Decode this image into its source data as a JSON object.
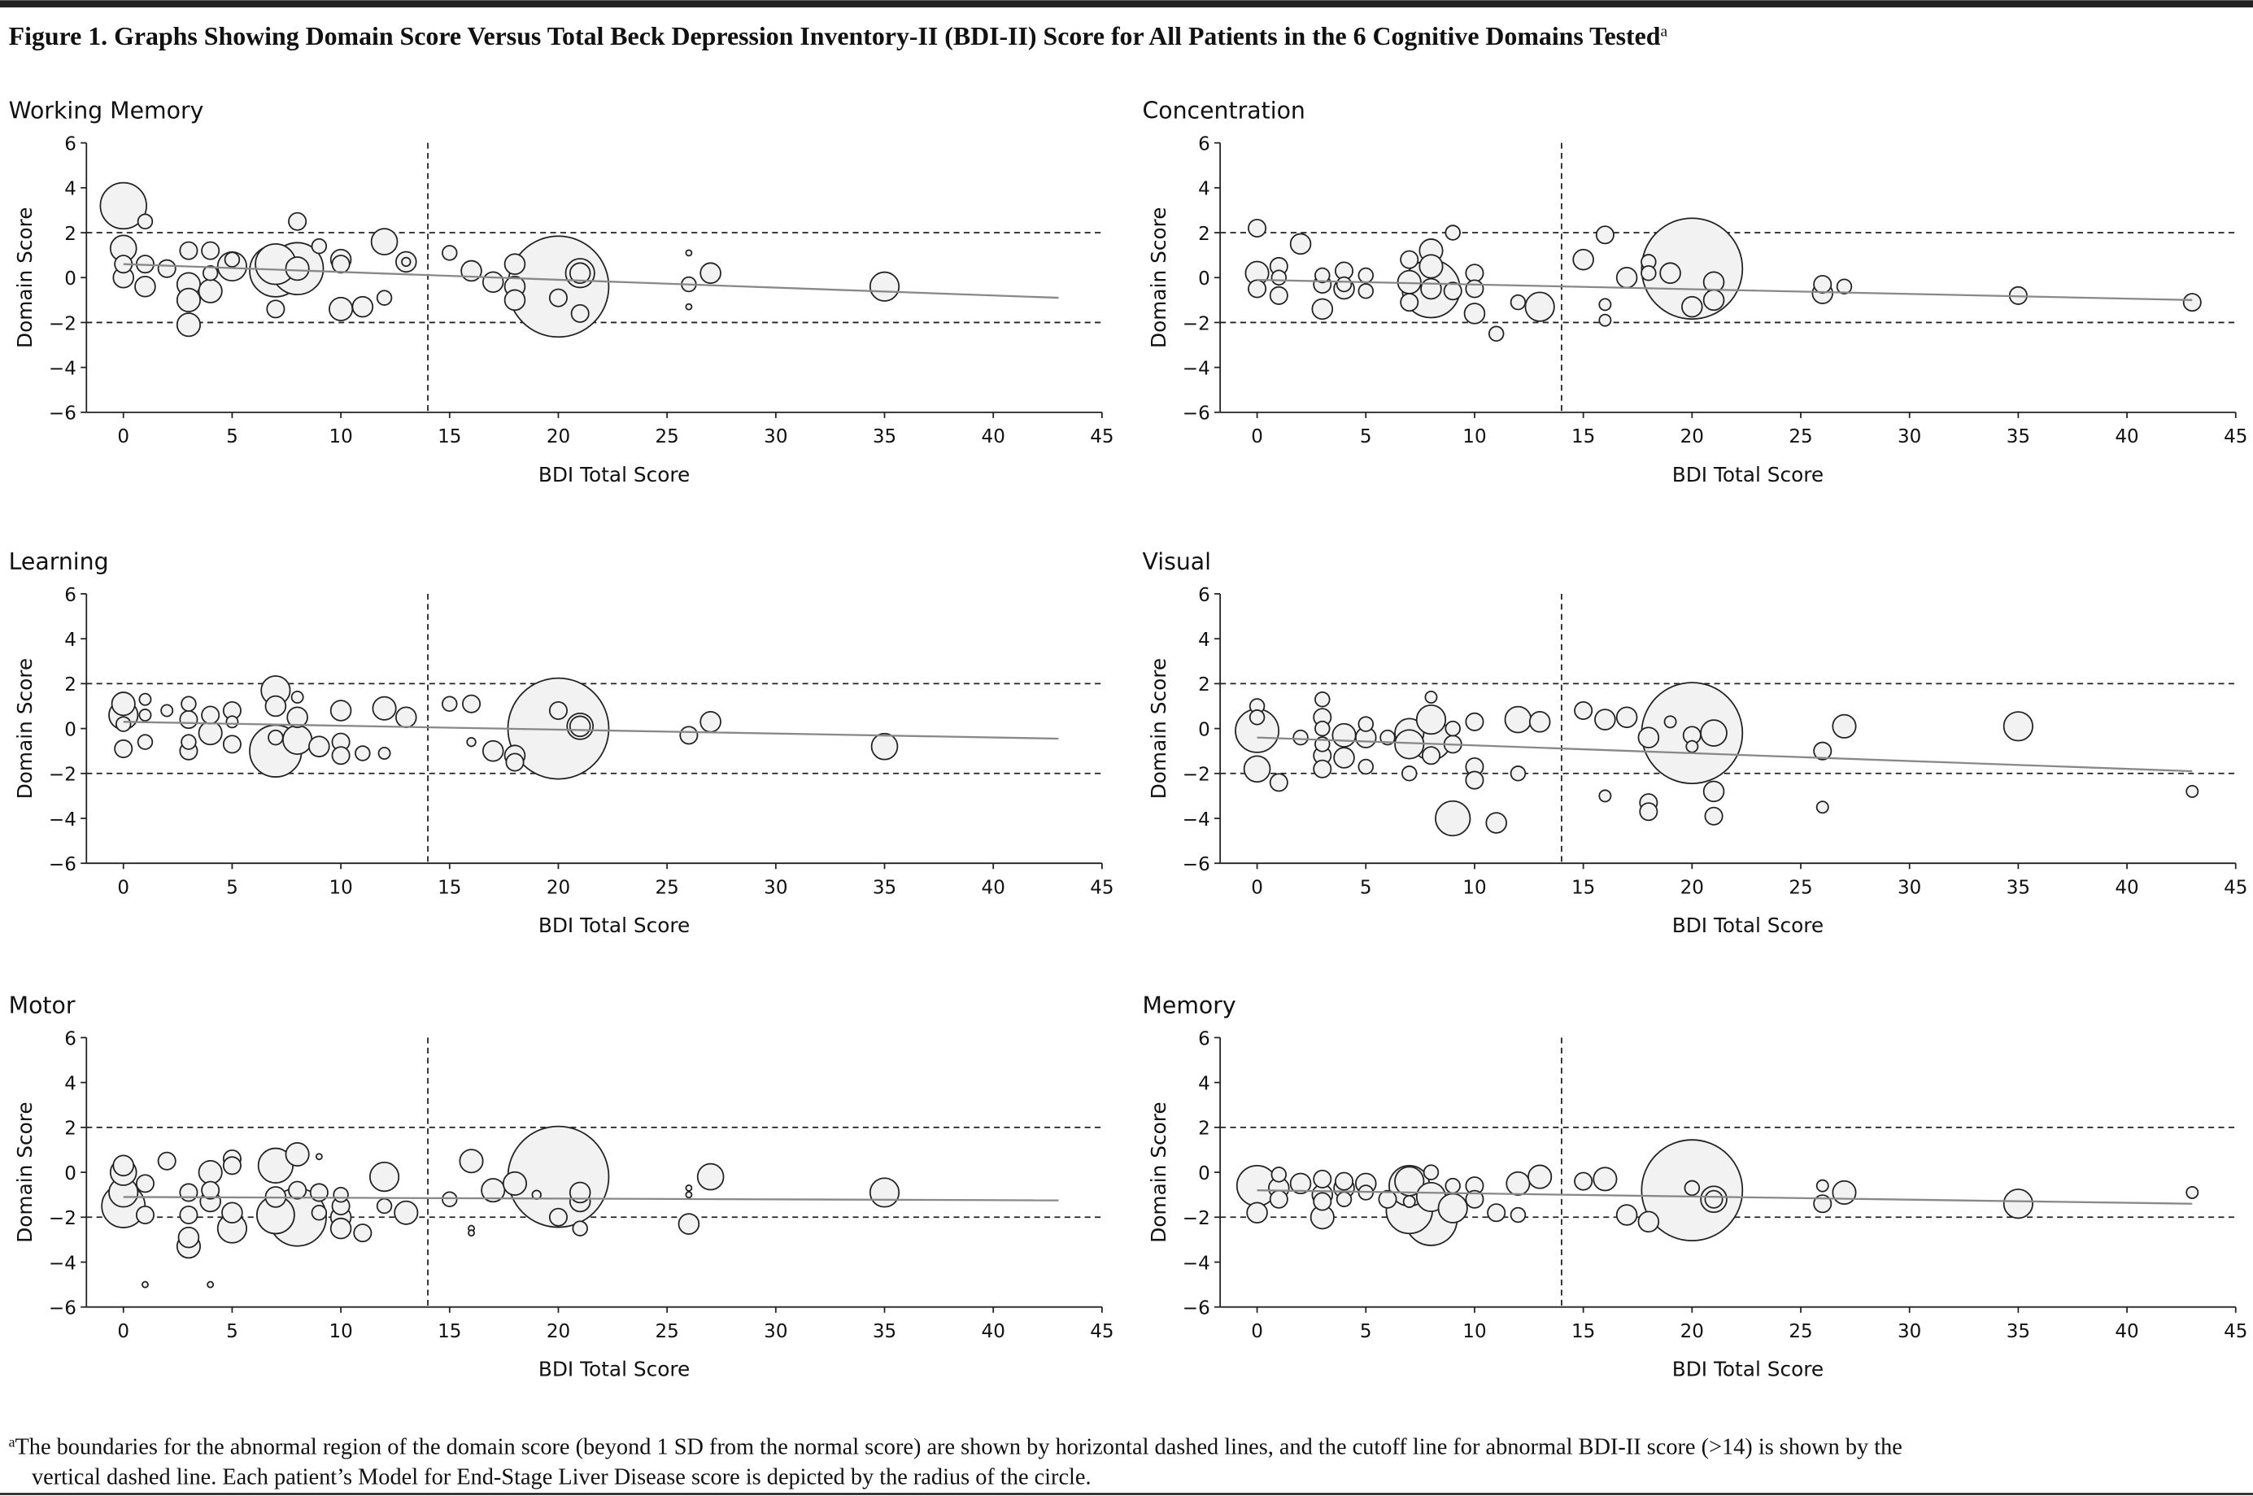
{
  "figure": {
    "title": "Figure 1. Graphs Showing Domain Score Versus Total Beck Depression Inventory-II (BDI-II) Score for All Patients in the 6 Cognitive Domains Tested",
    "title_mark": "a",
    "footnote_mark": "a",
    "footnote": [
      "The boundaries for the abnormal region of the domain score (beyond 1 SD from the normal score) are shown by horizontal dashed lines, and the cutoff line for abnormal BDI-II score (>14) is shown by the",
      "vertical dashed line. Each patient’s Model for End-Stage Liver Disease score is depicted by the radius of the circle."
    ]
  },
  "chart_data": [
    {
      "type": "bubble",
      "title": "Working Memory",
      "xlabel": "BDI Total Score",
      "ylabel": "Domain Score",
      "xlim": [
        -1.7,
        45
      ],
      "ylim": [
        -6,
        6
      ],
      "xticks": [
        0,
        5,
        10,
        15,
        20,
        25,
        30,
        35,
        40,
        45
      ],
      "yticks": [
        {
          "value": -6,
          "label": "−6"
        },
        {
          "value": -4,
          "label": "−4"
        },
        {
          "value": -2,
          "label": "−2"
        },
        0,
        2,
        4,
        6
      ],
      "hlines": [
        -2,
        2
      ],
      "vline": 14,
      "color": "#f2f2f2",
      "x": [
        0,
        0,
        0,
        0,
        1,
        1,
        1,
        2,
        3,
        3,
        3,
        3,
        4,
        4,
        4,
        5,
        5,
        7,
        7,
        7,
        8,
        8,
        8,
        9,
        10,
        10,
        10,
        11,
        12,
        12,
        13,
        13,
        15,
        16,
        17,
        18,
        18,
        18,
        20,
        20,
        21,
        21,
        21,
        26,
        26,
        26,
        27,
        35
      ],
      "values": [
        3.2,
        1.3,
        0.6,
        0,
        2.5,
        0.6,
        -0.4,
        0.4,
        1.2,
        -0.3,
        -1,
        -2.1,
        1.2,
        -0.6,
        0.2,
        0.5,
        0.8,
        0.6,
        0.3,
        -1.4,
        2.5,
        0.4,
        0.4,
        1.4,
        0.8,
        0.6,
        -1.4,
        -1.3,
        1.6,
        -0.9,
        0.7,
        0.7,
        1.1,
        0.3,
        -0.2,
        0.6,
        -0.4,
        -1,
        -0.4,
        -0.9,
        0.2,
        0.2,
        -1.6,
        1.1,
        -0.3,
        -1.3,
        0.2,
        -0.4
      ],
      "sizes": [
        16,
        9,
        6,
        7,
        5,
        6,
        7,
        6,
        6,
        8,
        8,
        8,
        6,
        8,
        5,
        10,
        5,
        14,
        18,
        6,
        6,
        18,
        8,
        5,
        7,
        6,
        8,
        7,
        9,
        5,
        7,
        3,
        5,
        7,
        7,
        7,
        7,
        7,
        35,
        6,
        10,
        7,
        6,
        2,
        5,
        2,
        7,
        10
      ],
      "trend": {
        "x": [
          0,
          43
        ],
        "y": [
          0.6,
          -0.9
        ]
      }
    },
    {
      "type": "bubble",
      "title": "Concentration",
      "xlabel": "BDI Total Score",
      "ylabel": "Domain Score",
      "xlim": [
        -1.7,
        45
      ],
      "ylim": [
        -6,
        6
      ],
      "xticks": [
        0,
        5,
        10,
        15,
        20,
        25,
        30,
        35,
        40,
        45
      ],
      "yticks": [
        {
          "value": -6,
          "label": "−6"
        },
        {
          "value": -4,
          "label": "−4"
        },
        {
          "value": -2,
          "label": "−2"
        },
        0,
        2,
        4,
        6
      ],
      "hlines": [
        -2,
        2
      ],
      "vline": 14,
      "color": "#f2f2f2",
      "x": [
        0,
        0,
        0,
        1,
        1,
        1,
        2,
        3,
        3,
        3,
        4,
        4,
        4,
        5,
        5,
        7,
        7,
        7,
        8,
        8,
        8,
        8,
        9,
        9,
        10,
        10,
        10,
        11,
        12,
        13,
        15,
        16,
        16,
        16,
        17,
        18,
        18,
        19,
        20,
        20,
        21,
        21,
        26,
        26,
        27,
        35,
        43
      ],
      "values": [
        2.2,
        0.2,
        -0.5,
        0.5,
        0,
        -0.8,
        1.5,
        0.1,
        -0.3,
        -1.4,
        0.3,
        -0.5,
        -0.3,
        0.1,
        -0.6,
        0.8,
        -0.2,
        -1.1,
        1.2,
        0.5,
        -0.5,
        -0.5,
        2,
        -0.6,
        0.2,
        -0.5,
        -1.6,
        -2.5,
        -1.1,
        -1.3,
        0.8,
        1.9,
        -1.2,
        -1.9,
        0,
        0.7,
        0.2,
        0.2,
        0.4,
        -1.3,
        -0.2,
        -1,
        -0.3,
        -0.7,
        -0.4,
        -0.8,
        -1.1
      ],
      "sizes": [
        6,
        8,
        6,
        6,
        5,
        6,
        7,
        5,
        6,
        7,
        6,
        7,
        5,
        5,
        5,
        6,
        8,
        6,
        8,
        8,
        20,
        7,
        5,
        6,
        6,
        6,
        7,
        5,
        5,
        10,
        7,
        6,
        4,
        4,
        7,
        5,
        5,
        7,
        35,
        7,
        7,
        7,
        6,
        7,
        5,
        6,
        6
      ],
      "trend": {
        "x": [
          0,
          43
        ],
        "y": [
          -0.1,
          -1
        ]
      }
    },
    {
      "type": "bubble",
      "title": "Learning",
      "xlabel": "BDI Total Score",
      "ylabel": "Domain Score",
      "xlim": [
        -1.7,
        45
      ],
      "ylim": [
        -6,
        6
      ],
      "xticks": [
        0,
        5,
        10,
        15,
        20,
        25,
        30,
        35,
        40,
        45
      ],
      "yticks": [
        {
          "value": -6,
          "label": "−6"
        },
        {
          "value": -4,
          "label": "−4"
        },
        {
          "value": -2,
          "label": "−2"
        },
        0,
        2,
        4,
        6
      ],
      "hlines": [
        -2,
        2
      ],
      "vline": 14,
      "color": "#f2f2f2",
      "x": [
        0,
        0,
        0,
        0,
        1,
        1,
        1,
        2,
        3,
        3,
        3,
        3,
        4,
        4,
        5,
        5,
        5,
        7,
        7,
        7,
        7,
        8,
        8,
        8,
        9,
        10,
        10,
        10,
        11,
        12,
        12,
        13,
        15,
        16,
        16,
        17,
        18,
        18,
        20,
        20,
        21,
        21,
        26,
        27,
        35
      ],
      "values": [
        0.6,
        1.1,
        0.2,
        -0.9,
        1.3,
        0.6,
        -0.6,
        0.8,
        1.1,
        0.4,
        -0.6,
        -1,
        0.6,
        -0.2,
        0.8,
        0.3,
        -0.7,
        1.7,
        1,
        -1,
        -0.4,
        1.4,
        0.5,
        -0.5,
        -0.8,
        0.8,
        -0.6,
        -1.2,
        -1.1,
        0.9,
        -1.1,
        0.5,
        1.1,
        1.1,
        -0.6,
        -1,
        -1.2,
        -1.5,
        0,
        0.8,
        0.1,
        0.1,
        -0.3,
        0.3,
        -0.8
      ],
      "sizes": [
        10,
        8,
        5,
        6,
        4,
        4,
        5,
        4,
        5,
        6,
        5,
        6,
        6,
        8,
        6,
        4,
        6,
        10,
        7,
        18,
        5,
        4,
        7,
        10,
        7,
        7,
        6,
        6,
        5,
        8,
        4,
        7,
        5,
        6,
        3,
        7,
        7,
        6,
        35,
        6,
        9,
        7,
        6,
        7,
        9
      ],
      "trend": {
        "x": [
          0,
          43
        ],
        "y": [
          0.3,
          -0.45
        ]
      }
    },
    {
      "type": "bubble",
      "title": "Visual",
      "xlabel": "BDI Total Score",
      "ylabel": "Domain Score",
      "xlim": [
        -1.7,
        45
      ],
      "ylim": [
        -6,
        6
      ],
      "xticks": [
        0,
        5,
        10,
        15,
        20,
        25,
        30,
        35,
        40,
        45
      ],
      "yticks": [
        {
          "value": -6,
          "label": "−6"
        },
        {
          "value": -4,
          "label": "−4"
        },
        {
          "value": -2,
          "label": "−2"
        },
        0,
        2,
        4,
        6
      ],
      "hlines": [
        -2,
        2
      ],
      "vline": 14,
      "color": "#f2f2f2",
      "x": [
        0,
        0,
        0,
        0,
        1,
        2,
        3,
        3,
        3,
        3,
        3,
        3,
        4,
        4,
        5,
        5,
        5,
        6,
        7,
        7,
        7,
        8,
        8,
        8,
        8,
        9,
        9,
        9,
        10,
        10,
        10,
        11,
        12,
        12,
        13,
        15,
        16,
        16,
        17,
        18,
        18,
        18,
        19,
        20,
        20,
        20,
        21,
        21,
        21,
        26,
        26,
        27,
        35,
        43
      ],
      "values": [
        1,
        0.5,
        -0.1,
        -1.8,
        -2.4,
        -0.4,
        1.3,
        0.5,
        0,
        -0.7,
        -1.2,
        -1.8,
        -0.3,
        -1.3,
        0.2,
        -0.4,
        -1.7,
        -0.4,
        -0.2,
        -0.7,
        -2,
        1.4,
        0.4,
        -0.5,
        -1.2,
        0,
        -0.7,
        -4,
        0.3,
        -1.7,
        -2.3,
        -4.2,
        0.4,
        -2,
        0.3,
        0.8,
        0.4,
        -3,
        0.5,
        -0.4,
        -3.3,
        -3.7,
        0.3,
        -0.8,
        -0.2,
        -0.3,
        -0.2,
        -2.8,
        -3.9,
        -1,
        -3.5,
        0.1,
        0.1,
        -2.8
      ],
      "sizes": [
        5,
        5,
        15,
        9,
        6,
        5,
        5,
        6,
        5,
        5,
        6,
        6,
        8,
        7,
        5,
        7,
        5,
        5,
        10,
        10,
        5,
        4,
        10,
        14,
        6,
        5,
        6,
        12,
        6,
        6,
        6,
        7,
        9,
        5,
        7,
        6,
        7,
        4,
        7,
        7,
        6,
        6,
        4,
        4,
        35,
        6,
        9,
        7,
        6,
        6,
        4,
        8,
        10,
        4
      ],
      "trend": {
        "x": [
          0,
          43
        ],
        "y": [
          -0.4,
          -1.9
        ]
      }
    },
    {
      "type": "bubble",
      "title": "Motor",
      "xlabel": "BDI Total Score",
      "ylabel": "Domain Score",
      "xlim": [
        -1.7,
        45
      ],
      "ylim": [
        -6,
        6
      ],
      "xticks": [
        0,
        5,
        10,
        15,
        20,
        25,
        30,
        35,
        40,
        45
      ],
      "yticks": [
        {
          "value": -6,
          "label": "−6"
        },
        {
          "value": -4,
          "label": "−4"
        },
        {
          "value": -2,
          "label": "−2"
        },
        0,
        2,
        4,
        6
      ],
      "hlines": [
        -2,
        2
      ],
      "vline": 14,
      "color": "#f2f2f2",
      "x": [
        0,
        0,
        0,
        0,
        1,
        1,
        1,
        2,
        3,
        3,
        3,
        3,
        4,
        4,
        4,
        4,
        5,
        5,
        5,
        5,
        7,
        7,
        7,
        8,
        8,
        8,
        9,
        9,
        9,
        10,
        10,
        10,
        10,
        11,
        12,
        12,
        13,
        15,
        16,
        16,
        16,
        17,
        18,
        19,
        20,
        20,
        21,
        21,
        21,
        26,
        26,
        26,
        27,
        35
      ],
      "values": [
        0.3,
        0,
        -0.9,
        -1.5,
        -0.5,
        -1.9,
        -5,
        0.5,
        -0.9,
        -1.9,
        -2.9,
        -3.3,
        0,
        -0.8,
        -1.3,
        -5,
        0.6,
        0.3,
        -1.8,
        -2.5,
        0.3,
        -1.1,
        -1.9,
        0.8,
        -0.8,
        -2,
        0.7,
        -0.9,
        -1.8,
        -1,
        -1.5,
        -2,
        -2.5,
        -2.7,
        -0.2,
        -1.5,
        -1.8,
        -1.2,
        0.5,
        -2.5,
        -2.7,
        -0.8,
        -0.5,
        -1,
        -0.2,
        -2,
        -1.3,
        -0.9,
        -2.5,
        -0.7,
        -1,
        -2.3,
        -0.2,
        -0.9
      ],
      "sizes": [
        7,
        9,
        10,
        15,
        6,
        6,
        2,
        6,
        6,
        6,
        7,
        8,
        8,
        6,
        7,
        2,
        6,
        6,
        7,
        10,
        12,
        7,
        13,
        8,
        6,
        20,
        2,
        6,
        5,
        5,
        6,
        7,
        7,
        6,
        10,
        5,
        8,
        5,
        8,
        2,
        2,
        8,
        8,
        3,
        35,
        6,
        7,
        7,
        5,
        2,
        2,
        7,
        9,
        10
      ],
      "trend": {
        "x": [
          0,
          43
        ],
        "y": [
          -1.1,
          -1.25
        ]
      }
    },
    {
      "type": "bubble",
      "title": "Memory",
      "xlabel": "BDI Total Score",
      "ylabel": "Domain Score",
      "xlim": [
        -1.7,
        45
      ],
      "ylim": [
        -6,
        6
      ],
      "xticks": [
        0,
        5,
        10,
        15,
        20,
        25,
        30,
        35,
        40,
        45
      ],
      "yticks": [
        {
          "value": -6,
          "label": "−6"
        },
        {
          "value": -4,
          "label": "−4"
        },
        {
          "value": -2,
          "label": "−2"
        },
        0,
        2,
        4,
        6
      ],
      "hlines": [
        -2,
        2
      ],
      "vline": 14,
      "color": "#f2f2f2",
      "x": [
        0,
        0,
        1,
        1,
        1,
        2,
        3,
        3,
        3,
        3,
        4,
        4,
        4,
        5,
        5,
        6,
        7,
        7,
        7,
        7,
        8,
        8,
        8,
        9,
        9,
        10,
        10,
        11,
        12,
        12,
        13,
        15,
        16,
        17,
        18,
        20,
        20,
        21,
        21,
        26,
        26,
        27,
        35,
        43
      ],
      "values": [
        -0.6,
        -1.8,
        -0.1,
        -0.7,
        -1.2,
        -0.5,
        -0.3,
        -1,
        -1.3,
        -2,
        -0.4,
        -0.7,
        -1.2,
        -0.5,
        -0.9,
        -1.2,
        -0.4,
        -0.6,
        -1.3,
        -1.7,
        -2.1,
        0,
        -1.1,
        -0.6,
        -1.6,
        -0.6,
        -1.2,
        -1.8,
        -0.5,
        -1.9,
        -0.2,
        -0.4,
        -0.3,
        -1.9,
        -2.2,
        -0.8,
        -0.7,
        -1.2,
        -1.2,
        -0.6,
        -1.4,
        -0.9,
        -1.4,
        -0.9
      ],
      "sizes": [
        14,
        7,
        5,
        7,
        6,
        7,
        6,
        7,
        6,
        8,
        6,
        7,
        5,
        7,
        5,
        6,
        10,
        14,
        4,
        16,
        18,
        5,
        10,
        5,
        10,
        6,
        6,
        6,
        8,
        5,
        8,
        6,
        8,
        7,
        7,
        35,
        5,
        6,
        9,
        4,
        6,
        8,
        10,
        4
      ],
      "trend": {
        "x": [
          0,
          43
        ],
        "y": [
          -0.8,
          -1.4
        ]
      }
    }
  ]
}
